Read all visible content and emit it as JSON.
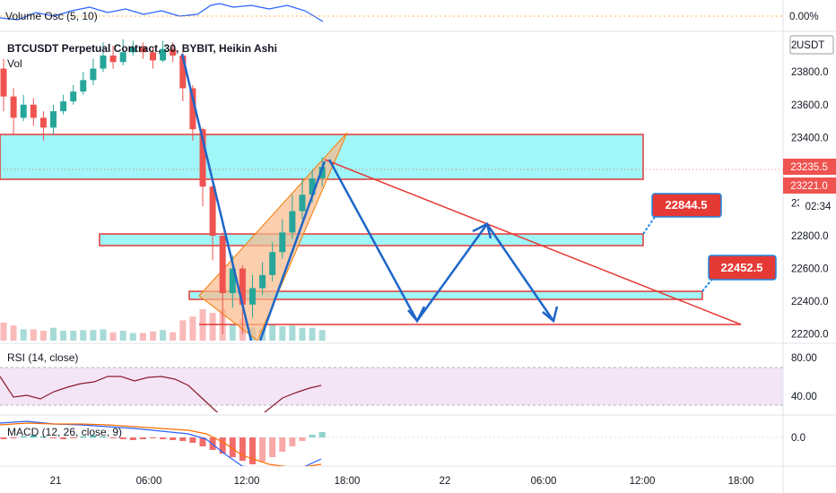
{
  "indicators": {
    "volume_osc": {
      "title": "Volume Osc (5, 10)",
      "value_label": "0.00%"
    },
    "main": {
      "title": "BTCUSDT Perpetual Contract, 30, BYBIT, Heikin Ashi",
      "vol_label": "Vol",
      "currency": "USDT"
    },
    "rsi": {
      "title": "RSI (14, close)"
    },
    "macd": {
      "title": "MACD (12, 26, close, 9)"
    }
  },
  "price_axis": {
    "ticks": [
      "23800.0",
      "23600.0",
      "23400.0",
      "23000.0",
      "22800.0",
      "22600.0",
      "22400.0",
      "22200.0"
    ],
    "partial_ticks": [
      "2",
      "2",
      "2"
    ]
  },
  "rsi_axis": {
    "ticks": [
      "80.00",
      "40.00"
    ]
  },
  "macd_axis": {
    "ticks": [
      "0.0"
    ]
  },
  "price_badges": {
    "close": "23235.5",
    "last": "23221.0",
    "countdown": "02:34"
  },
  "callouts": {
    "target1": "22844.5",
    "target2": "22452.5"
  },
  "time_axis": {
    "labels": [
      "21",
      "06:00",
      "12:00",
      "18:00",
      "22",
      "06:00",
      "12:00",
      "18:00"
    ]
  },
  "colors": {
    "bull": "#26a69a",
    "bear": "#ef5350",
    "zone_fill": "#a0f6f8",
    "zone_border": "#e53935",
    "wedge_fill": "#f9b98a",
    "arrow": "#1e66c8",
    "trendline": "#e53935",
    "rsi_fill": "#f3e5f5",
    "rsi_line": "#8e1b2e"
  },
  "chart_data": {
    "type": "candlestick",
    "title": "BTCUSDT Perpetual Contract, 30, BYBIT, Heikin Ashi",
    "y_range": [
      22160,
      24020
    ],
    "heikin_ashi": [
      {
        "o": 23820,
        "c": 23650,
        "h": 23880,
        "l": 23560
      },
      {
        "o": 23650,
        "c": 23520,
        "h": 23700,
        "l": 23420
      },
      {
        "o": 23520,
        "c": 23600,
        "h": 23660,
        "l": 23500
      },
      {
        "o": 23600,
        "c": 23520,
        "h": 23640,
        "l": 23470
      },
      {
        "o": 23520,
        "c": 23460,
        "h": 23560,
        "l": 23380
      },
      {
        "o": 23460,
        "c": 23560,
        "h": 23600,
        "l": 23420
      },
      {
        "o": 23560,
        "c": 23620,
        "h": 23660,
        "l": 23540
      },
      {
        "o": 23620,
        "c": 23680,
        "h": 23720,
        "l": 23600
      },
      {
        "o": 23680,
        "c": 23750,
        "h": 23800,
        "l": 23660
      },
      {
        "o": 23750,
        "c": 23820,
        "h": 23880,
        "l": 23720
      },
      {
        "o": 23820,
        "c": 23900,
        "h": 23980,
        "l": 23800
      },
      {
        "o": 23900,
        "c": 23860,
        "h": 23960,
        "l": 23820
      },
      {
        "o": 23860,
        "c": 23920,
        "h": 24000,
        "l": 23840
      },
      {
        "o": 23920,
        "c": 23950,
        "h": 23990,
        "l": 23900
      },
      {
        "o": 23950,
        "c": 23920,
        "h": 23980,
        "l": 23880
      },
      {
        "o": 23920,
        "c": 23870,
        "h": 23950,
        "l": 23820
      },
      {
        "o": 23870,
        "c": 23940,
        "h": 23990,
        "l": 23860
      },
      {
        "o": 23940,
        "c": 23900,
        "h": 23980,
        "l": 23860
      },
      {
        "o": 23900,
        "c": 23700,
        "h": 23920,
        "l": 23620
      },
      {
        "o": 23700,
        "c": 23450,
        "h": 23720,
        "l": 23380
      },
      {
        "o": 23450,
        "c": 23100,
        "h": 23460,
        "l": 22980
      },
      {
        "o": 23100,
        "c": 22800,
        "h": 23120,
        "l": 22650
      },
      {
        "o": 22800,
        "c": 22450,
        "h": 22820,
        "l": 22200
      },
      {
        "o": 22450,
        "c": 22600,
        "h": 22680,
        "l": 22360
      },
      {
        "o": 22600,
        "c": 22380,
        "h": 22620,
        "l": 22200
      },
      {
        "o": 22380,
        "c": 22480,
        "h": 22560,
        "l": 22300
      },
      {
        "o": 22480,
        "c": 22560,
        "h": 22640,
        "l": 22440
      },
      {
        "o": 22560,
        "c": 22700,
        "h": 22760,
        "l": 22520
      },
      {
        "o": 22700,
        "c": 22820,
        "h": 22900,
        "l": 22660
      },
      {
        "o": 22820,
        "c": 22950,
        "h": 23050,
        "l": 22780
      },
      {
        "o": 22950,
        "c": 23050,
        "h": 23150,
        "l": 22900
      },
      {
        "o": 23050,
        "c": 23150,
        "h": 23200,
        "l": 23000
      },
      {
        "o": 23150,
        "c": 23220,
        "h": 23280,
        "l": 23100
      }
    ],
    "horizontal_zones": [
      [
        23200,
        23450
      ],
      [
        22780,
        22830
      ],
      [
        22405,
        22450
      ]
    ],
    "support_line": 22250,
    "annotations": [
      "22844.5",
      "22452.5"
    ],
    "rsi_levels": [
      80,
      40
    ],
    "macd_zero": 0.0
  }
}
